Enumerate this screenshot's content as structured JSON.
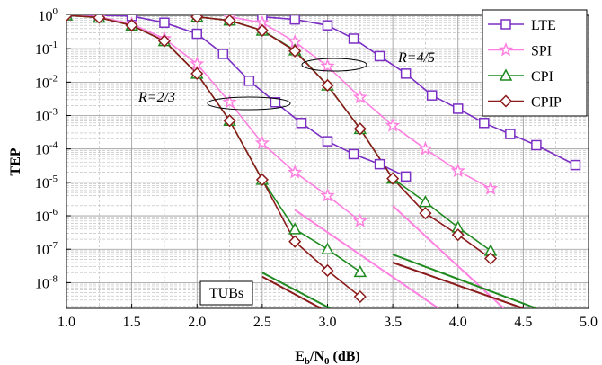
{
  "chart_data": {
    "type": "line",
    "ylabel": "TEP",
    "xlabel": {
      "main": "E",
      "sub1": "b",
      "mid": "/N",
      "sub2": "0",
      "tail": " (dB)"
    },
    "xlim": [
      1.0,
      5.0
    ],
    "xticks": [
      {
        "value": 1.0,
        "label": "1.0"
      },
      {
        "value": 1.5,
        "label": "1.5"
      },
      {
        "value": 2.0,
        "label": "2.0"
      },
      {
        "value": 2.5,
        "label": "2.5"
      },
      {
        "value": 3.0,
        "label": "3.0"
      },
      {
        "value": 3.5,
        "label": "3.5"
      },
      {
        "value": 4.0,
        "label": "4.0"
      },
      {
        "value": 4.5,
        "label": "4.5"
      },
      {
        "value": 5.0,
        "label": "5.0"
      }
    ],
    "ylim": [
      1.7e-09,
      1
    ],
    "log_y": true,
    "grid": true,
    "legend": "upper right",
    "yticks": [
      {
        "value": 1,
        "label": "10",
        "exp": "0"
      },
      {
        "value": 0.1,
        "label": "10",
        "exp": "-1"
      },
      {
        "value": 0.01,
        "label": "10",
        "exp": "-2"
      },
      {
        "value": 0.001,
        "label": "10",
        "exp": "-3"
      },
      {
        "value": 0.0001,
        "label": "10",
        "exp": "-4"
      },
      {
        "value": 1e-05,
        "label": "10",
        "exp": "-5"
      },
      {
        "value": 1e-06,
        "label": "10",
        "exp": "-6"
      },
      {
        "value": 1e-07,
        "label": "10",
        "exp": "-7"
      },
      {
        "value": 1e-08,
        "label": "10",
        "exp": "-8"
      }
    ],
    "annotations": [
      {
        "text": "R=2/3"
      },
      {
        "text": "R=4/5"
      },
      {
        "text": "TUBs"
      }
    ],
    "series": [
      {
        "name": "LTE",
        "color": "#7b2fc4",
        "marker": "square",
        "curves": [
          {
            "x": [
              1.0,
              1.25,
              1.5,
              1.75,
              2.0,
              2.2,
              2.4,
              2.6,
              2.8,
              3.0,
              3.2,
              3.4,
              3.6
            ],
            "values": [
              1,
              1,
              0.95,
              0.6,
              0.28,
              0.07,
              0.011,
              0.0025,
              0.0006,
              0.00017,
              7e-05,
              3.5e-05,
              1.5e-05
            ]
          },
          {
            "x": [
              2.5,
              2.75,
              3.0,
              3.2,
              3.4,
              3.6,
              3.8,
              4.0,
              4.2,
              4.4,
              4.6,
              4.9
            ],
            "values": [
              0.9,
              0.75,
              0.5,
              0.2,
              0.06,
              0.018,
              0.004,
              0.0016,
              0.0006,
              0.00028,
              0.00013,
              3.3e-05
            ]
          }
        ],
        "bounds": []
      },
      {
        "name": "SPI",
        "color": "#ff80e0",
        "marker": "star",
        "curves": [
          {
            "x": [
              1.0,
              1.25,
              1.5,
              1.75,
              2.0,
              2.25,
              2.5,
              2.75,
              3.0,
              3.25
            ],
            "values": [
              1,
              0.9,
              0.55,
              0.2,
              0.035,
              0.0025,
              0.00015,
              2e-05,
              4e-06,
              7e-07
            ]
          },
          {
            "x": [
              2.25,
              2.5,
              2.75,
              3.0,
              3.25,
              3.5,
              3.75,
              4.0,
              4.25
            ],
            "values": [
              0.9,
              0.6,
              0.16,
              0.03,
              0.0035,
              0.0005,
              0.0001,
              2.2e-05,
              6.5e-06
            ]
          }
        ],
        "bounds": [
          {
            "x": [
              2.75,
              3.85
            ],
            "values": [
              1.5e-06,
              1.7e-09
            ]
          },
          {
            "x": [
              3.5,
              4.35
            ],
            "values": [
              2e-06,
              1.7e-09
            ]
          }
        ]
      },
      {
        "name": "CPI",
        "color": "#1f8a1f",
        "marker": "triangle",
        "curves": [
          {
            "x": [
              1.0,
              1.25,
              1.5,
              1.75,
              2.0,
              2.25,
              2.5,
              2.75,
              3.0,
              3.25
            ],
            "values": [
              1,
              0.85,
              0.5,
              0.17,
              0.018,
              0.0007,
              1.2e-05,
              4e-07,
              1e-07,
              2.1e-08
            ]
          },
          {
            "x": [
              2.0,
              2.25,
              2.5,
              2.75,
              3.0,
              3.25,
              3.5,
              3.75,
              4.0,
              4.25
            ],
            "values": [
              0.9,
              0.7,
              0.35,
              0.09,
              0.008,
              0.0004,
              1.3e-05,
              2.6e-06,
              4.5e-07,
              9e-08
            ]
          }
        ],
        "bounds": [
          {
            "x": [
              2.5,
              3.02
            ],
            "values": [
              2e-08,
              1.7e-09
            ]
          },
          {
            "x": [
              3.5,
              4.6
            ],
            "values": [
              7e-08,
              1.7e-09
            ]
          }
        ]
      },
      {
        "name": "CPIP",
        "color": "#8b1a1a",
        "marker": "diamond",
        "curves": [
          {
            "x": [
              1.0,
              1.25,
              1.5,
              1.75,
              2.0,
              2.25,
              2.5,
              2.75,
              3.0,
              3.25
            ],
            "values": [
              1,
              0.85,
              0.5,
              0.17,
              0.018,
              0.0007,
              1.2e-05,
              1.7e-07,
              2.3e-08,
              3.8e-09
            ]
          },
          {
            "x": [
              2.0,
              2.25,
              2.5,
              2.75,
              3.0,
              3.25,
              3.5,
              3.75,
              4.0,
              4.25
            ],
            "values": [
              0.9,
              0.7,
              0.35,
              0.085,
              0.008,
              0.0004,
              1.3e-05,
              1.2e-06,
              2.7e-07,
              5.3e-08
            ]
          }
        ],
        "bounds": [
          {
            "x": [
              2.5,
              2.95
            ],
            "values": [
              1.5e-08,
              1.7e-09
            ]
          },
          {
            "x": [
              3.5,
              4.5
            ],
            "values": [
              4e-08,
              1.7e-09
            ]
          }
        ]
      }
    ]
  }
}
